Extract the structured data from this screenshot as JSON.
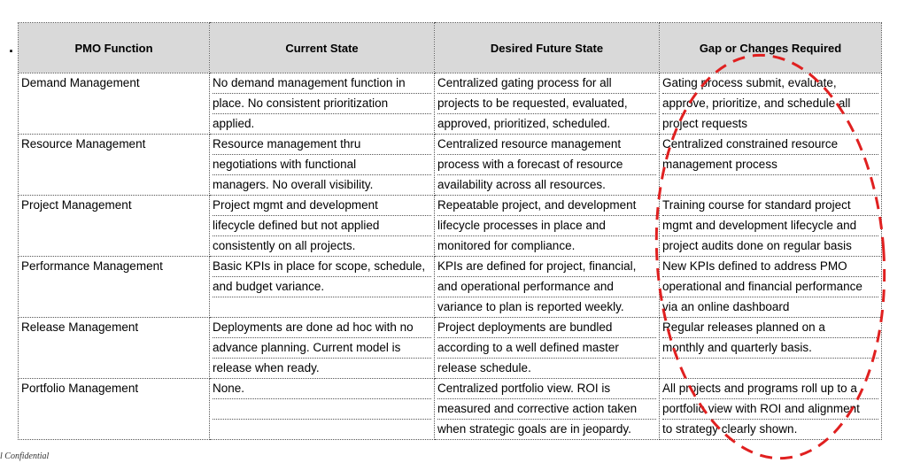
{
  "headers": [
    "PMO Function",
    "Current State",
    "Desired Future State",
    "Gap or Changes Required"
  ],
  "rows": [
    {
      "function": "Demand Management",
      "current": [
        "No demand management function in",
        "place.  No consistent prioritization",
        "applied."
      ],
      "future": [
        "Centralized gating process for all",
        "projects to be requested, evaluated,",
        "approved, prioritized, scheduled."
      ],
      "gap": [
        "Gating process submit, evaluate,",
        "approve, prioritize, and schedule all",
        "project requests"
      ]
    },
    {
      "function": "Resource Management",
      "current": [
        "Resource management thru",
        "negotiations with functional",
        "managers.  No overall visibility."
      ],
      "future": [
        "Centralized resource management",
        "process with a forecast of resource",
        "availability across all resources."
      ],
      "gap": [
        "Centralized constrained resource",
        "management process",
        ""
      ]
    },
    {
      "function": "Project Management",
      "current": [
        "Project mgmt and  development",
        "lifecycle defined but not applied",
        "consistently on all projects."
      ],
      "future": [
        "Repeatable project, and development",
        "lifecycle processes in place and",
        "monitored for compliance."
      ],
      "gap": [
        "Training course for standard project",
        "mgmt and development lifecycle and",
        "project audits done on regular basis"
      ]
    },
    {
      "function": "Performance Management",
      "current": [
        "Basic KPIs in place for scope, schedule,",
        "and budget variance.",
        ""
      ],
      "future": [
        "KPIs are defined for project, financial,",
        "and operational performance and",
        "variance to plan is reported weekly."
      ],
      "gap": [
        "New KPIs defined to address PMO",
        "operational and financial performance",
        "via an online dashboard"
      ]
    },
    {
      "function": "Release Management",
      "current": [
        "Deployments are done ad hoc with no",
        "advance planning.  Current model is",
        "release when ready."
      ],
      "future": [
        "Project deployments are bundled",
        "according to a well defined master",
        "release schedule."
      ],
      "gap": [
        "Regular releases planned on a",
        "monthly and quarterly basis.",
        ""
      ]
    },
    {
      "function": "Portfolio Management",
      "current": [
        "None.",
        "",
        ""
      ],
      "future": [
        "Centralized portfolio view.  ROI is",
        "measured and corrective action taken",
        "when strategic goals are in jeopardy."
      ],
      "gap": [
        "All projects and programs roll up to a",
        "portfolio view with ROI and alignment",
        "to strategy clearly shown."
      ]
    }
  ],
  "bullet": ".",
  "footer": "l Confidential",
  "colors": {
    "header_bg": "#d9d9d9",
    "annotation": "#e02020"
  }
}
